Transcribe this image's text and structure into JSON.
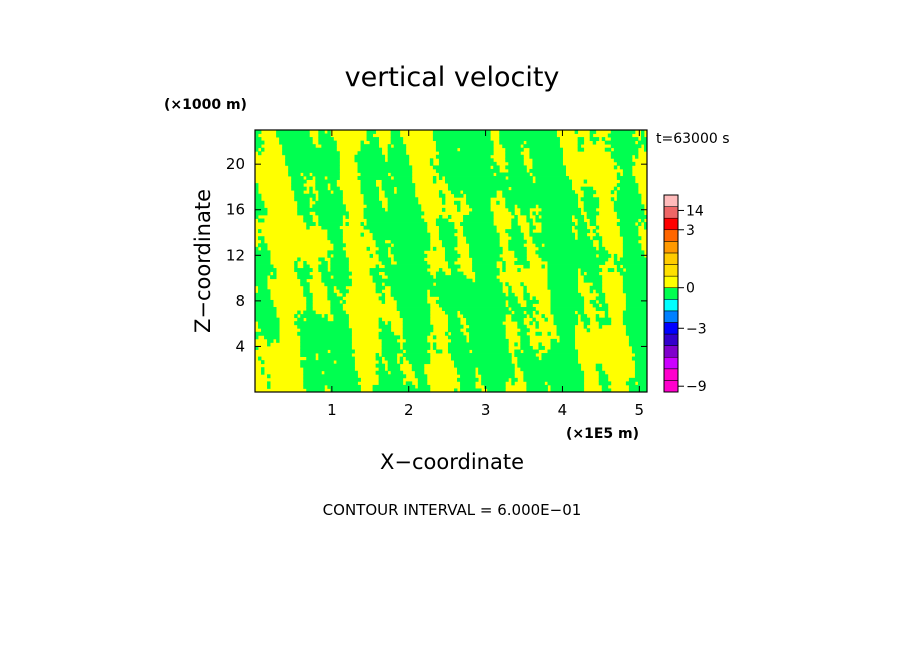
{
  "chart_data": {
    "type": "heatmap",
    "title": "vertical velocity",
    "xlabel": "X−coordinate",
    "ylabel": "Z−coordinate",
    "x_unit": "(×1E5 m)",
    "y_unit": "(×1000 m)",
    "time_label": "t=63000 s",
    "footer": "CONTOUR INTERVAL = 6.000E−01",
    "xlim": [
      0,
      5.1
    ],
    "ylim": [
      0,
      23
    ],
    "x_ticks": [
      1,
      2,
      3,
      4,
      5
    ],
    "y_ticks": [
      4,
      8,
      12,
      16,
      20
    ],
    "field_colors": {
      "positive": "#ffff00",
      "negative": "#00ff50"
    },
    "colorbar": {
      "tick_labels": [
        "14",
        "3",
        "0",
        "−3",
        "−9"
      ],
      "tick_values": [
        14,
        3,
        0,
        -3,
        -9
      ],
      "bands": [
        {
          "from": -9.6,
          "to": -8.4,
          "color": "#ff00cc"
        },
        {
          "from": -8.4,
          "to": -7.2,
          "color": "#ff00cc"
        },
        {
          "from": -7.2,
          "to": -6.0,
          "color": "#cc00ff"
        },
        {
          "from": -6.0,
          "to": -4.8,
          "color": "#8000cc"
        },
        {
          "from": -4.8,
          "to": -3.6,
          "color": "#3300cc"
        },
        {
          "from": -3.6,
          "to": -2.4,
          "color": "#0000ff"
        },
        {
          "from": -2.4,
          "to": -1.2,
          "color": "#0080ff"
        },
        {
          "from": -1.2,
          "to": -0.6,
          "color": "#00ffff"
        },
        {
          "from": -0.6,
          "to": 0.0,
          "color": "#00ff50"
        },
        {
          "from": 0.0,
          "to": 0.6,
          "color": "#ffff00"
        },
        {
          "from": 0.6,
          "to": 1.2,
          "color": "#ffe000"
        },
        {
          "from": 1.2,
          "to": 1.8,
          "color": "#ffcc00"
        },
        {
          "from": 1.8,
          "to": 2.4,
          "color": "#ff9900"
        },
        {
          "from": 2.4,
          "to": 3.0,
          "color": "#ff6600"
        },
        {
          "from": 3.0,
          "to": 8.0,
          "color": "#ff0000"
        },
        {
          "from": 8.0,
          "to": 17.0,
          "color": "#ee6666"
        },
        {
          "from": 17.0,
          "to": 20.0,
          "color": "#ffbbbb"
        }
      ]
    }
  }
}
